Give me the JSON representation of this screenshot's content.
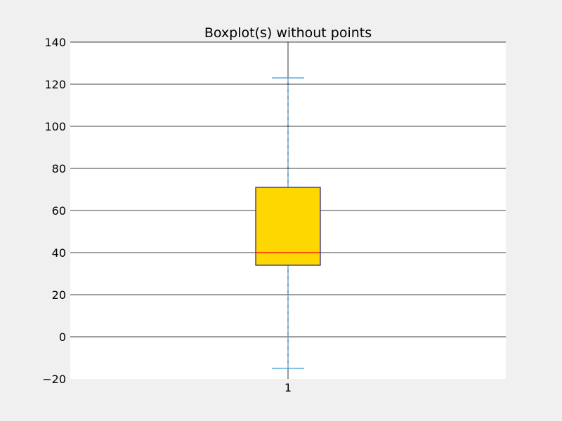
{
  "chart_data": {
    "type": "boxplot",
    "title": "Boxplot(s) without points",
    "xlabel": "",
    "ylabel": "",
    "categories": [
      "1"
    ],
    "ylim": [
      -20,
      140
    ],
    "yticks": [
      -20,
      0,
      20,
      40,
      60,
      80,
      100,
      120,
      140
    ],
    "grid": true,
    "boxes": [
      {
        "category": "1",
        "whisker_low": -15,
        "q1": 34,
        "median": 40,
        "q3": 71,
        "whisker_high": 123
      }
    ],
    "colors": {
      "figure_background": "#f0f0f0",
      "axes_background": "#ffffff",
      "box_fill": "#ffd700",
      "box_edge": "#1a1a9e",
      "median": "#ff0000",
      "whisker": "#3a9ad9",
      "grid": "#000000"
    }
  }
}
